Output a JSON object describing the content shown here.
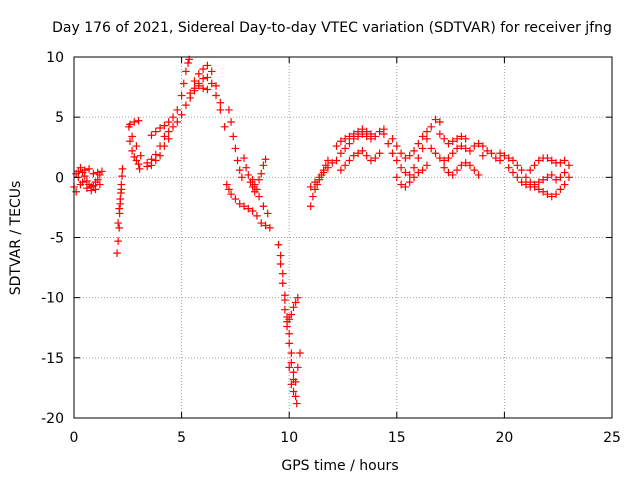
{
  "chart_data": {
    "type": "scatter",
    "title": "Day 176 of 2021, Sidereal Day-to-day VTEC variation (SDTVAR) for receiver jfng",
    "xlabel": "GPS time / hours",
    "ylabel": "SDTVAR / TECUs",
    "xlim": [
      0,
      25
    ],
    "ylim": [
      -20,
      10
    ],
    "x_ticks": [
      0,
      5,
      10,
      15,
      20,
      25
    ],
    "y_ticks": [
      -20,
      -15,
      -10,
      -5,
      0,
      5,
      10
    ],
    "x_tick_labels": [
      "0",
      "5",
      "10",
      "15",
      "20",
      "25"
    ],
    "y_tick_labels": [
      "-20",
      "-15",
      "-10",
      "-5",
      "0",
      "5",
      "10"
    ],
    "grid": true,
    "marker": "plus",
    "series": [
      {
        "name": "SDTVAR",
        "color": "#ff0000",
        "points": [
          [
            0.0,
            -0.8
          ],
          [
            0.1,
            -1.2
          ],
          [
            0.2,
            0.5
          ],
          [
            0.3,
            0.8
          ],
          [
            0.4,
            0.4
          ],
          [
            0.5,
            0.1
          ],
          [
            0.6,
            -0.3
          ],
          [
            0.7,
            -0.6
          ],
          [
            0.8,
            -0.8
          ],
          [
            0.9,
            -0.7
          ],
          [
            1.0,
            -0.4
          ],
          [
            1.1,
            -0.2
          ],
          [
            1.2,
            0.2
          ],
          [
            1.3,
            0.5
          ],
          [
            0.2,
            0.0
          ],
          [
            0.4,
            -0.4
          ],
          [
            0.6,
            -0.9
          ],
          [
            0.8,
            -1.1
          ],
          [
            1.0,
            -1.0
          ],
          [
            1.2,
            -0.6
          ],
          [
            0.1,
            0.3
          ],
          [
            0.3,
            -0.6
          ],
          [
            0.5,
            0.6
          ],
          [
            0.7,
            0.7
          ],
          [
            0.9,
            0.3
          ],
          [
            1.1,
            0.4
          ],
          [
            2.0,
            -6.3
          ],
          [
            2.05,
            -5.3
          ],
          [
            2.1,
            -4.2
          ],
          [
            2.12,
            -3.0
          ],
          [
            2.15,
            -2.2
          ],
          [
            2.18,
            -1.3
          ],
          [
            2.2,
            -0.6
          ],
          [
            2.23,
            0.1
          ],
          [
            2.25,
            0.7
          ],
          [
            2.05,
            -3.8
          ],
          [
            2.1,
            -2.6
          ],
          [
            2.15,
            -1.8
          ],
          [
            2.2,
            -1.0
          ],
          [
            2.55,
            4.2
          ],
          [
            2.6,
            3.0
          ],
          [
            2.7,
            2.2
          ],
          [
            2.8,
            1.7
          ],
          [
            2.9,
            1.4
          ],
          [
            3.0,
            1.1
          ],
          [
            3.05,
            0.7
          ],
          [
            2.6,
            4.4
          ],
          [
            2.8,
            4.6
          ],
          [
            3.0,
            4.7
          ],
          [
            2.7,
            3.4
          ],
          [
            2.9,
            2.6
          ],
          [
            3.1,
            1.8
          ],
          [
            3.4,
            1.2
          ],
          [
            3.6,
            1.5
          ],
          [
            3.8,
            1.9
          ],
          [
            4.0,
            2.6
          ],
          [
            4.2,
            3.4
          ],
          [
            4.4,
            3.8
          ],
          [
            4.6,
            4.2
          ],
          [
            4.8,
            4.6
          ],
          [
            5.0,
            5.2
          ],
          [
            5.2,
            6.0
          ],
          [
            5.4,
            6.6
          ],
          [
            5.6,
            7.2
          ],
          [
            5.8,
            7.8
          ],
          [
            6.0,
            8.2
          ],
          [
            6.2,
            8.3
          ],
          [
            6.4,
            7.8
          ],
          [
            6.6,
            6.8
          ],
          [
            6.8,
            5.6
          ],
          [
            7.0,
            4.2
          ],
          [
            3.4,
            0.9
          ],
          [
            3.6,
            1.0
          ],
          [
            3.8,
            1.4
          ],
          [
            4.0,
            1.8
          ],
          [
            4.2,
            2.6
          ],
          [
            4.4,
            3.2
          ],
          [
            3.6,
            3.5
          ],
          [
            3.8,
            3.8
          ],
          [
            4.0,
            4.1
          ],
          [
            4.2,
            4.3
          ],
          [
            4.4,
            4.6
          ],
          [
            4.6,
            5.0
          ],
          [
            4.8,
            5.6
          ],
          [
            5.0,
            6.8
          ],
          [
            5.1,
            7.8
          ],
          [
            5.2,
            8.8
          ],
          [
            5.3,
            9.5
          ],
          [
            5.35,
            9.8
          ],
          [
            5.6,
            8.0
          ],
          [
            5.8,
            8.6
          ],
          [
            6.0,
            9.0
          ],
          [
            6.2,
            9.3
          ],
          [
            6.4,
            8.8
          ],
          [
            6.6,
            7.6
          ],
          [
            6.8,
            6.2
          ],
          [
            5.4,
            7.0
          ],
          [
            5.6,
            7.4
          ],
          [
            5.8,
            7.6
          ],
          [
            6.0,
            7.4
          ],
          [
            6.2,
            7.3
          ],
          [
            7.2,
            5.6
          ],
          [
            7.3,
            4.6
          ],
          [
            7.4,
            3.4
          ],
          [
            7.5,
            2.4
          ],
          [
            7.6,
            1.4
          ],
          [
            7.7,
            0.6
          ],
          [
            7.8,
            0.0
          ],
          [
            7.1,
            -0.6
          ],
          [
            7.2,
            -1.0
          ],
          [
            7.3,
            -1.4
          ],
          [
            7.5,
            -1.8
          ],
          [
            7.7,
            -2.2
          ],
          [
            7.9,
            -2.4
          ],
          [
            8.1,
            -2.6
          ],
          [
            8.3,
            -2.8
          ],
          [
            8.5,
            -3.2
          ],
          [
            8.7,
            -3.8
          ],
          [
            8.9,
            -4.0
          ],
          [
            9.1,
            -4.2
          ],
          [
            7.9,
            1.6
          ],
          [
            8.0,
            0.8
          ],
          [
            8.1,
            0.2
          ],
          [
            8.2,
            -0.4
          ],
          [
            8.3,
            -0.8
          ],
          [
            8.4,
            -1.2
          ],
          [
            8.6,
            -1.6
          ],
          [
            8.8,
            -2.4
          ],
          [
            9.0,
            -3.0
          ],
          [
            8.3,
            -0.2
          ],
          [
            8.4,
            -0.6
          ],
          [
            8.5,
            -1.0
          ],
          [
            8.6,
            -0.2
          ],
          [
            8.7,
            0.3
          ],
          [
            8.8,
            1.0
          ],
          [
            8.9,
            1.5
          ],
          [
            9.5,
            -5.6
          ],
          [
            9.6,
            -7.2
          ],
          [
            9.7,
            -8.8
          ],
          [
            9.8,
            -10.2
          ],
          [
            9.9,
            -12.0
          ],
          [
            10.0,
            -13.8
          ],
          [
            10.1,
            -15.4
          ],
          [
            10.2,
            -16.8
          ],
          [
            10.3,
            -18.2
          ],
          [
            10.35,
            -18.8
          ],
          [
            9.6,
            -6.5
          ],
          [
            9.7,
            -8.0
          ],
          [
            9.8,
            -9.8
          ],
          [
            9.9,
            -11.6
          ],
          [
            10.0,
            -13.0
          ],
          [
            10.1,
            -14.6
          ],
          [
            10.2,
            -16.2
          ],
          [
            9.8,
            -11.0
          ],
          [
            9.9,
            -12.4
          ],
          [
            10.0,
            -11.8
          ],
          [
            10.1,
            -11.4
          ],
          [
            10.2,
            -10.8
          ],
          [
            10.3,
            -10.4
          ],
          [
            10.4,
            -10.0
          ],
          [
            10.0,
            -15.8
          ],
          [
            10.1,
            -17.2
          ],
          [
            10.2,
            -17.8
          ],
          [
            10.3,
            -17.0
          ],
          [
            10.4,
            -15.8
          ],
          [
            10.5,
            -14.6
          ],
          [
            11.0,
            -2.4
          ],
          [
            11.1,
            -1.6
          ],
          [
            11.2,
            -1.0
          ],
          [
            11.3,
            -0.6
          ],
          [
            11.4,
            -0.2
          ],
          [
            11.5,
            0.2
          ],
          [
            11.6,
            0.6
          ],
          [
            11.7,
            1.0
          ],
          [
            11.8,
            1.4
          ],
          [
            11.0,
            -0.8
          ],
          [
            11.2,
            -0.4
          ],
          [
            11.4,
            0.0
          ],
          [
            11.6,
            0.4
          ],
          [
            11.8,
            0.8
          ],
          [
            12.0,
            1.2
          ],
          [
            12.2,
            1.4
          ],
          [
            12.4,
            2.0
          ],
          [
            12.6,
            2.4
          ],
          [
            12.8,
            2.8
          ],
          [
            13.0,
            3.2
          ],
          [
            13.2,
            3.4
          ],
          [
            13.4,
            3.6
          ],
          [
            13.6,
            3.4
          ],
          [
            13.8,
            3.2
          ],
          [
            14.0,
            3.4
          ],
          [
            14.2,
            3.8
          ],
          [
            14.4,
            4.0
          ],
          [
            12.2,
            2.6
          ],
          [
            12.4,
            3.0
          ],
          [
            12.6,
            3.2
          ],
          [
            12.8,
            3.4
          ],
          [
            13.0,
            3.6
          ],
          [
            13.2,
            3.8
          ],
          [
            13.4,
            4.0
          ],
          [
            13.6,
            3.8
          ],
          [
            13.8,
            3.6
          ],
          [
            12.4,
            0.6
          ],
          [
            12.6,
            1.0
          ],
          [
            12.8,
            1.4
          ],
          [
            13.0,
            1.8
          ],
          [
            13.2,
            2.0
          ],
          [
            13.4,
            2.2
          ],
          [
            13.6,
            1.8
          ],
          [
            13.8,
            1.4
          ],
          [
            14.0,
            1.6
          ],
          [
            14.2,
            2.0
          ],
          [
            14.4,
            3.6
          ],
          [
            14.6,
            2.8
          ],
          [
            14.8,
            2.0
          ],
          [
            15.0,
            1.4
          ],
          [
            15.2,
            0.8
          ],
          [
            15.4,
            0.4
          ],
          [
            15.6,
            0.2
          ],
          [
            15.8,
            0.8
          ],
          [
            16.0,
            1.6
          ],
          [
            16.2,
            2.4
          ],
          [
            16.4,
            3.2
          ],
          [
            16.6,
            4.2
          ],
          [
            16.8,
            4.8
          ],
          [
            17.0,
            4.6
          ],
          [
            14.8,
            3.2
          ],
          [
            15.0,
            2.6
          ],
          [
            15.2,
            2.0
          ],
          [
            15.4,
            1.6
          ],
          [
            15.6,
            1.8
          ],
          [
            15.8,
            2.2
          ],
          [
            16.0,
            2.8
          ],
          [
            16.2,
            3.4
          ],
          [
            16.4,
            3.8
          ],
          [
            15.0,
            0.0
          ],
          [
            15.2,
            -0.6
          ],
          [
            15.4,
            -0.8
          ],
          [
            15.6,
            -0.4
          ],
          [
            15.8,
            0.0
          ],
          [
            16.0,
            0.4
          ],
          [
            16.2,
            0.6
          ],
          [
            16.4,
            1.0
          ],
          [
            16.6,
            2.4
          ],
          [
            16.8,
            2.0
          ],
          [
            17.0,
            1.6
          ],
          [
            17.2,
            1.4
          ],
          [
            17.4,
            1.6
          ],
          [
            17.6,
            2.0
          ],
          [
            17.8,
            2.4
          ],
          [
            18.0,
            2.6
          ],
          [
            18.2,
            2.4
          ],
          [
            18.4,
            2.2
          ],
          [
            18.6,
            2.6
          ],
          [
            18.8,
            2.8
          ],
          [
            19.0,
            2.6
          ],
          [
            17.0,
            3.6
          ],
          [
            17.2,
            3.2
          ],
          [
            17.4,
            2.8
          ],
          [
            17.6,
            3.0
          ],
          [
            17.8,
            3.2
          ],
          [
            18.0,
            3.4
          ],
          [
            18.2,
            3.2
          ],
          [
            17.2,
            0.8
          ],
          [
            17.4,
            0.4
          ],
          [
            17.6,
            0.2
          ],
          [
            17.8,
            0.6
          ],
          [
            18.0,
            1.0
          ],
          [
            18.2,
            1.2
          ],
          [
            18.4,
            1.0
          ],
          [
            18.6,
            0.6
          ],
          [
            18.8,
            0.2
          ],
          [
            19.0,
            1.8
          ],
          [
            19.2,
            2.2
          ],
          [
            19.4,
            2.0
          ],
          [
            19.6,
            1.6
          ],
          [
            19.8,
            1.4
          ],
          [
            19.8,
            2.0
          ],
          [
            20.0,
            1.8
          ],
          [
            20.2,
            1.6
          ],
          [
            20.4,
            1.4
          ],
          [
            20.6,
            1.0
          ],
          [
            20.8,
            0.6
          ],
          [
            21.0,
            0.0
          ],
          [
            21.2,
            -0.4
          ],
          [
            21.4,
            -0.8
          ],
          [
            21.6,
            -1.0
          ],
          [
            21.8,
            -1.2
          ],
          [
            22.0,
            -1.4
          ],
          [
            22.2,
            -1.6
          ],
          [
            22.4,
            -1.4
          ],
          [
            22.6,
            -1.0
          ],
          [
            22.8,
            -0.6
          ],
          [
            23.0,
            0.0
          ],
          [
            20.2,
            0.8
          ],
          [
            20.4,
            0.4
          ],
          [
            20.6,
            0.0
          ],
          [
            20.8,
            -0.4
          ],
          [
            21.0,
            -0.6
          ],
          [
            21.2,
            -0.8
          ],
          [
            21.4,
            -0.6
          ],
          [
            21.6,
            -0.4
          ],
          [
            21.8,
            -0.2
          ],
          [
            22.0,
            0.0
          ],
          [
            22.2,
            0.2
          ],
          [
            21.2,
            0.6
          ],
          [
            21.4,
            1.0
          ],
          [
            21.6,
            1.4
          ],
          [
            21.8,
            1.6
          ],
          [
            22.0,
            1.6
          ],
          [
            22.2,
            1.4
          ],
          [
            22.4,
            1.2
          ],
          [
            22.6,
            1.2
          ],
          [
            22.8,
            1.4
          ],
          [
            23.0,
            1.0
          ],
          [
            22.8,
            0.4
          ],
          [
            22.6,
            0.0
          ],
          [
            22.4,
            -0.2
          ]
        ]
      }
    ]
  }
}
